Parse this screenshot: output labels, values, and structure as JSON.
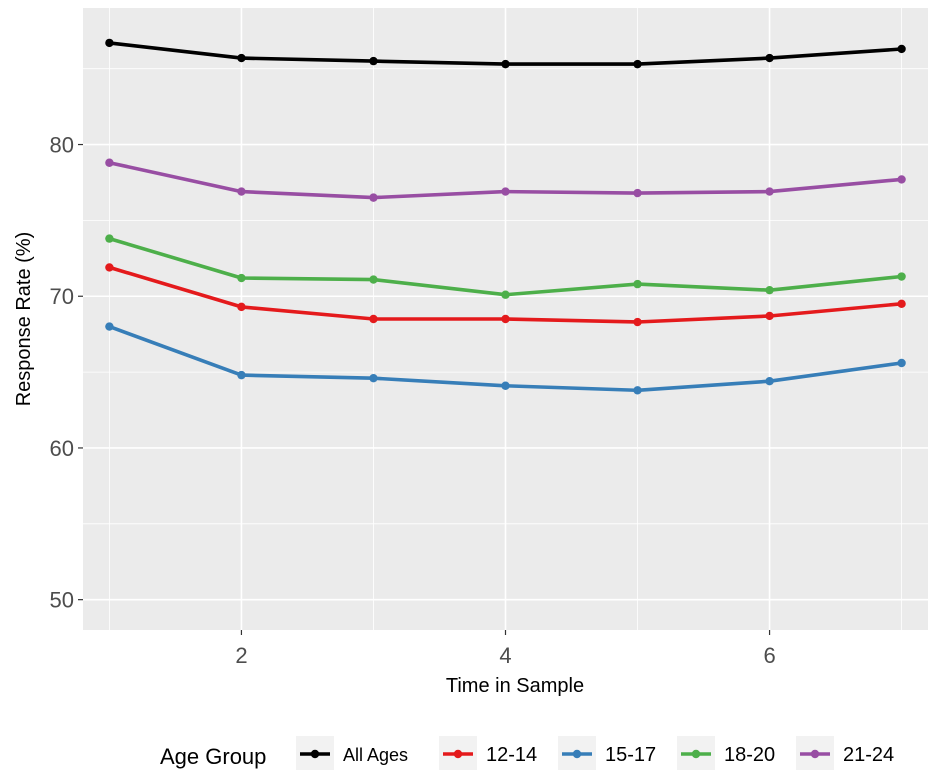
{
  "chart_data": {
    "type": "line",
    "title": "",
    "xlabel": "Time in Sample",
    "ylabel": "Response Rate (%)",
    "xlim": [
      0.8,
      7.2
    ],
    "ylim": [
      48,
      89
    ],
    "x_ticks": [
      2,
      4,
      6
    ],
    "y_ticks": [
      50,
      60,
      70,
      80
    ],
    "grid": true,
    "legend": {
      "position": "bottom",
      "title": "Age Group"
    },
    "x": [
      1,
      2,
      3,
      4,
      5,
      6,
      7
    ],
    "series": [
      {
        "name": "All Ages",
        "color": "#000000",
        "values": [
          86.7,
          85.7,
          85.5,
          85.3,
          85.3,
          85.7,
          86.3
        ]
      },
      {
        "name": "12-14",
        "color": "#e41a1c",
        "values": [
          71.9,
          69.3,
          68.5,
          68.5,
          68.3,
          68.7,
          69.5
        ]
      },
      {
        "name": "15-17",
        "color": "#377eb8",
        "values": [
          68.0,
          64.8,
          64.6,
          64.1,
          63.8,
          64.4,
          65.6
        ]
      },
      {
        "name": "18-20",
        "color": "#4daf4a",
        "values": [
          73.8,
          71.2,
          71.1,
          70.1,
          70.8,
          70.4,
          71.3
        ]
      },
      {
        "name": "21-24",
        "color": "#984ea3",
        "values": [
          78.8,
          76.9,
          76.5,
          76.9,
          76.8,
          76.9,
          77.7
        ]
      }
    ]
  }
}
